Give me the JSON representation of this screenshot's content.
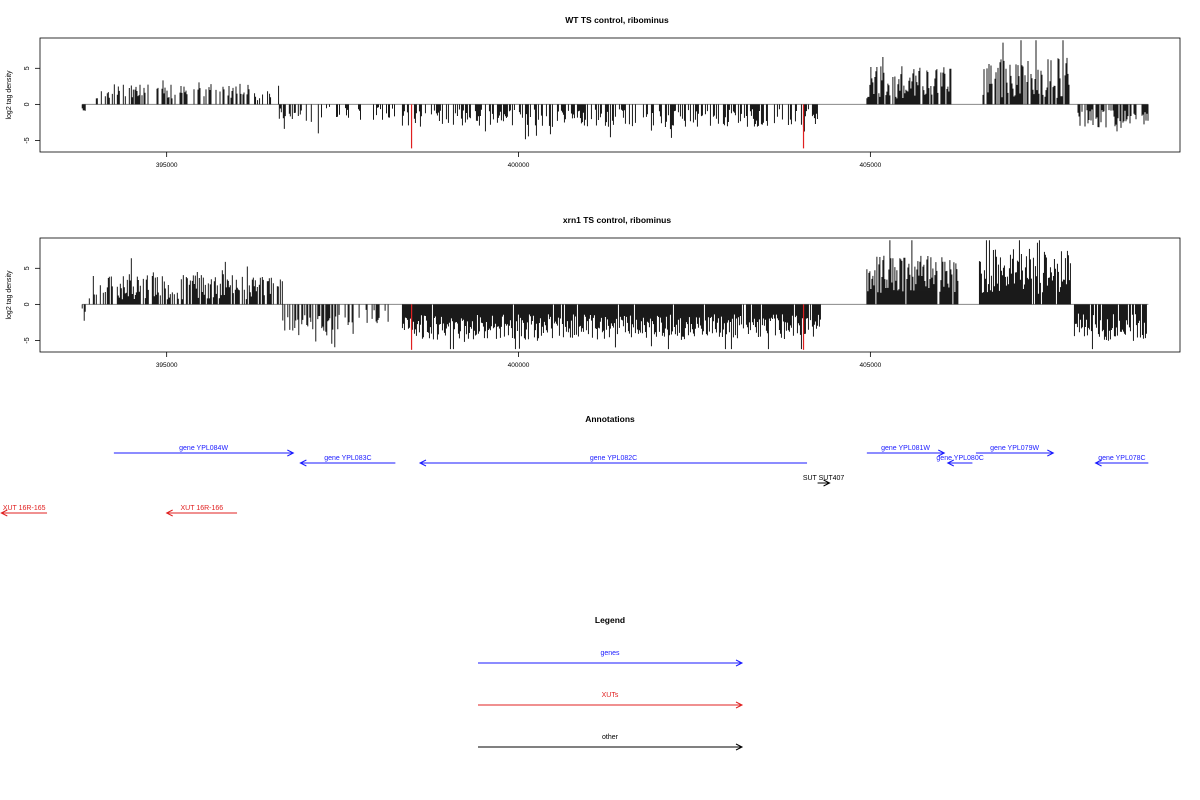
{
  "chart_data": [
    {
      "type": "bar",
      "title": "WT TS control, ribominus",
      "ylabel": "log2 tag density",
      "xlim": [
        393200,
        409400
      ],
      "ylim": [
        -6.6,
        9.2
      ],
      "x_ticks": [
        395000,
        400000,
        405000
      ],
      "x_tick_labels": [
        "395000",
        "400000",
        "405000"
      ],
      "y_ticks": [
        -5,
        0,
        5
      ],
      "y_tick_labels": [
        "-5",
        "0",
        "5"
      ],
      "highlight_color": "#e02020",
      "highlights": [
        {
          "x": 398480,
          "y": -6.1
        },
        {
          "x": 404050,
          "y": -6.1
        }
      ],
      "segments": [
        {
          "start": 393800,
          "end": 393850,
          "sign": -1,
          "mean": 0.6,
          "amp": 0.4,
          "density": 0.5,
          "seed": 11
        },
        {
          "start": 394000,
          "end": 394170,
          "sign": 1,
          "mean": 0.8,
          "amp": 1.0,
          "density": 0.3,
          "seed": 12
        },
        {
          "start": 394170,
          "end": 394550,
          "sign": 1,
          "mean": 1.5,
          "amp": 1.2,
          "density": 0.55,
          "seed": 13
        },
        {
          "start": 394550,
          "end": 396250,
          "sign": 1,
          "mean": 1.6,
          "amp": 1.4,
          "density": 0.45,
          "seed": 14
        },
        {
          "start": 396250,
          "end": 396600,
          "sign": 1,
          "mean": 1.0,
          "amp": 1.2,
          "density": 0.4,
          "seed": 15
        },
        {
          "start": 396600,
          "end": 397200,
          "sign": -1,
          "mean": 1.2,
          "amp": 1.3,
          "density": 0.35,
          "seed": 16
        },
        {
          "start": 397200,
          "end": 398350,
          "sign": -1,
          "mean": 0.9,
          "amp": 1.2,
          "density": 0.25,
          "seed": 17
        },
        {
          "start": 398350,
          "end": 404250,
          "sign": -1,
          "mean": 1.5,
          "amp": 1.6,
          "density": 0.55,
          "seed": 18
        },
        {
          "start": 404950,
          "end": 406150,
          "sign": 1,
          "mean": 2.4,
          "amp": 2.8,
          "density": 0.85,
          "seed": 19
        },
        {
          "start": 406600,
          "end": 407850,
          "sign": 1,
          "mean": 2.8,
          "amp": 3.6,
          "density": 0.85,
          "seed": 20
        },
        {
          "start": 407950,
          "end": 408950,
          "sign": -1,
          "mean": 1.6,
          "amp": 1.6,
          "density": 0.6,
          "seed": 21
        }
      ]
    },
    {
      "type": "bar",
      "title": "xrn1 TS control, ribominus",
      "ylabel": "log2 tag density",
      "xlim": [
        393200,
        409400
      ],
      "ylim": [
        -6.6,
        9.2
      ],
      "x_ticks": [
        395000,
        400000,
        405000
      ],
      "x_tick_labels": [
        "395000",
        "400000",
        "405000"
      ],
      "y_ticks": [
        -5,
        0,
        5
      ],
      "y_tick_labels": [
        "-5",
        "0",
        "5"
      ],
      "highlight_color": "#e02020",
      "highlights": [
        {
          "x": 398480,
          "y": -6.3
        },
        {
          "x": 404050,
          "y": -6.3
        }
      ],
      "segments": [
        {
          "start": 393800,
          "end": 393860,
          "sign": -1,
          "mean": 1.2,
          "amp": 1.5,
          "density": 0.5,
          "seed": 31
        },
        {
          "start": 393900,
          "end": 394100,
          "sign": 1,
          "mean": 1.5,
          "amp": 2.5,
          "density": 0.45,
          "seed": 32
        },
        {
          "start": 394100,
          "end": 396650,
          "sign": 1,
          "mean": 1.9,
          "amp": 2.2,
          "density": 0.75,
          "seed": 33
        },
        {
          "start": 396650,
          "end": 397450,
          "sign": -1,
          "mean": 2.2,
          "amp": 2.0,
          "density": 0.65,
          "seed": 34
        },
        {
          "start": 397450,
          "end": 398150,
          "sign": -1,
          "mean": 1.2,
          "amp": 1.6,
          "density": 0.35,
          "seed": 35
        },
        {
          "start": 398350,
          "end": 404300,
          "sign": -1,
          "mean": 2.6,
          "amp": 2.2,
          "density": 0.95,
          "seed": 36
        },
        {
          "start": 404950,
          "end": 406250,
          "sign": 1,
          "mean": 3.4,
          "amp": 3.2,
          "density": 0.95,
          "seed": 37
        },
        {
          "start": 406550,
          "end": 407850,
          "sign": 1,
          "mean": 3.6,
          "amp": 4.0,
          "density": 0.95,
          "seed": 38
        },
        {
          "start": 407900,
          "end": 408950,
          "sign": -1,
          "mean": 2.6,
          "amp": 2.4,
          "density": 0.9,
          "seed": 39
        }
      ]
    }
  ],
  "annotations": {
    "title": "Annotations",
    "colors": {
      "gene": "#1a1aff",
      "xut": "#e02020",
      "other": "#000000"
    },
    "features": [
      {
        "label": "gene YPL084W",
        "kind": "gene",
        "start": 394250,
        "end": 396800,
        "row": 0
      },
      {
        "label": "gene YPL083C",
        "kind": "gene",
        "start": 398250,
        "end": 396900,
        "row": 1
      },
      {
        "label": "gene YPL082C",
        "kind": "gene",
        "start": 404100,
        "end": 398600,
        "row": 1
      },
      {
        "label": "gene YPL081W",
        "kind": "gene",
        "start": 404950,
        "end": 406050,
        "row": 0
      },
      {
        "label": "gene YPL080C",
        "kind": "gene",
        "start": 406450,
        "end": 406100,
        "row": 1
      },
      {
        "label": "gene YPL079W",
        "kind": "gene",
        "start": 406500,
        "end": 407600,
        "row": 0
      },
      {
        "label": "gene YPL078C",
        "kind": "gene",
        "start": 408950,
        "end": 408200,
        "row": 1
      },
      {
        "label": "SUT SUT407",
        "kind": "other",
        "start": 404250,
        "end": 404420,
        "row": 3
      },
      {
        "label": "XUT 16R-165",
        "kind": "xut",
        "start": 393300,
        "end": 392650,
        "row": 6
      },
      {
        "label": "XUT 16R-166",
        "kind": "xut",
        "start": 396000,
        "end": 395000,
        "row": 6
      }
    ]
  },
  "legend": {
    "title": "Legend",
    "items": [
      {
        "label": "genes",
        "color": "#1a1aff"
      },
      {
        "label": "XUTs",
        "color": "#e02020"
      },
      {
        "label": "other",
        "color": "#000000"
      }
    ]
  }
}
